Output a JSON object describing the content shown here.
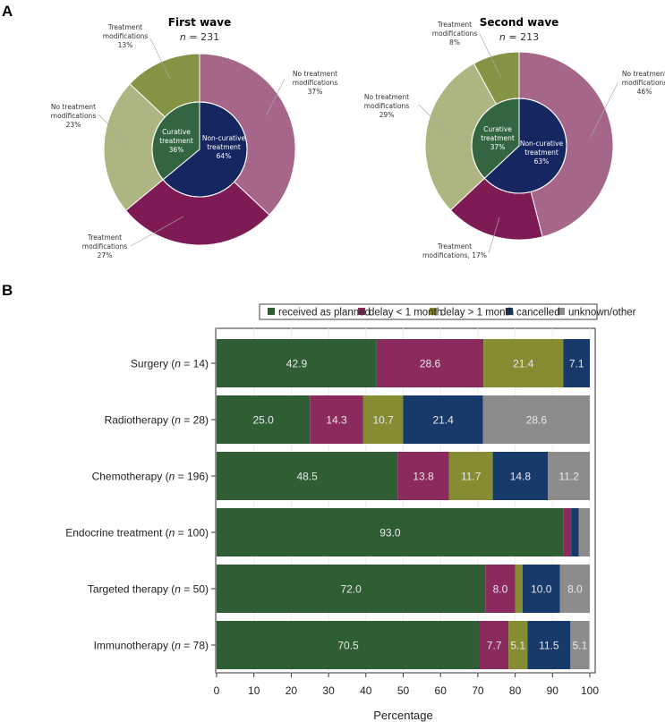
{
  "panels": {
    "a": "A",
    "b": "B"
  },
  "chart_data": [
    {
      "type": "pie",
      "variant": "nested-donut",
      "title": "First wave",
      "n_label": "n",
      "n_value": "= 231",
      "inner": [
        {
          "label": "Non-curative treatment",
          "value": 64,
          "text": "64%"
        },
        {
          "label": "Curative treatment",
          "value": 36,
          "text": "36%"
        }
      ],
      "outer": [
        {
          "label": "No treatment modifications",
          "value": 37,
          "text": "37%",
          "parent": "Non-curative treatment"
        },
        {
          "label": "Treatment modifications",
          "value": 27,
          "text": "27%",
          "parent": "Non-curative treatment"
        },
        {
          "label": "No treatment modifications",
          "value": 23,
          "text": "23%",
          "parent": "Curative treatment"
        },
        {
          "label": "Treatment modifications",
          "value": 13,
          "text": "13%",
          "parent": "Curative treatment"
        }
      ]
    },
    {
      "type": "pie",
      "variant": "nested-donut",
      "title": "Second wave",
      "n_label": "n",
      "n_value": "= 213",
      "inner": [
        {
          "label": "Non-curative treatment",
          "value": 63,
          "text": "63%"
        },
        {
          "label": "Curative treatment",
          "value": 37,
          "text": "37%"
        }
      ],
      "outer": [
        {
          "label": "No treatment modifications",
          "value": 46,
          "text": "46%",
          "parent": "Non-curative treatment"
        },
        {
          "label": "Treatment modifications",
          "value": 17,
          "text": "17%",
          "parent": "Non-curative treatment"
        },
        {
          "label": "No treatment modifications",
          "value": 29,
          "text": "29%",
          "parent": "Curative treatment"
        },
        {
          "label": "Treatment modifications",
          "value": 8,
          "text": "8%",
          "parent": "Curative treatment"
        }
      ]
    },
    {
      "type": "bar",
      "orientation": "horizontal",
      "stacked": true,
      "xlabel": "Percentage",
      "xlim": [
        0,
        100
      ],
      "xticks": [
        0,
        10,
        20,
        30,
        40,
        50,
        60,
        70,
        80,
        90,
        100
      ],
      "grid": true,
      "legend": "top",
      "series_names": [
        "received as planned",
        "delay < 1 month",
        "delay > 1 month",
        "cancelled",
        "unknown/other"
      ],
      "series_colors": [
        "#2f5e34",
        "#8b2a5d",
        "#858c32",
        "#173a6a",
        "#8c8c8c"
      ],
      "categories": [
        {
          "name": "Surgery",
          "n": "14",
          "values": [
            42.9,
            28.6,
            21.4,
            7.1,
            0
          ],
          "labels": [
            "42.9",
            "28.6",
            "21.4",
            "7.1",
            ""
          ]
        },
        {
          "name": "Radiotherapy",
          "n": "28",
          "values": [
            25.0,
            14.3,
            10.7,
            21.4,
            28.6
          ],
          "labels": [
            "25.0",
            "14.3",
            "10.7",
            "21.4",
            "28.6"
          ]
        },
        {
          "name": "Chemotherapy",
          "n": "196",
          "values": [
            48.5,
            13.8,
            11.7,
            14.8,
            11.2
          ],
          "labels": [
            "48.5",
            "13.8",
            "11.7",
            "14.8",
            "11.2"
          ]
        },
        {
          "name": "Endocrine treatment",
          "n": "100",
          "values": [
            93.0,
            2.0,
            0,
            2.0,
            3.0
          ],
          "labels": [
            "93.0",
            "",
            "",
            "",
            ""
          ]
        },
        {
          "name": "Targeted therapy",
          "n": "50",
          "values": [
            72.0,
            8.0,
            2.0,
            10.0,
            8.0
          ],
          "labels": [
            "72.0",
            "8.0",
            "",
            "10.0",
            "8.0"
          ]
        },
        {
          "name": "Immunotherapy",
          "n": "78",
          "values": [
            70.5,
            7.7,
            5.1,
            11.5,
            5.1
          ],
          "labels": [
            "70.5",
            "7.7",
            "5.1",
            "11.5",
            "5.1"
          ]
        }
      ]
    }
  ],
  "colors": {
    "nc_nomod": "#a5668a",
    "nc_mod": "#7e1a54",
    "c_nomod": "#adb580",
    "c_mod": "#849344",
    "curative": "#336640",
    "noncurative": "#152660"
  }
}
